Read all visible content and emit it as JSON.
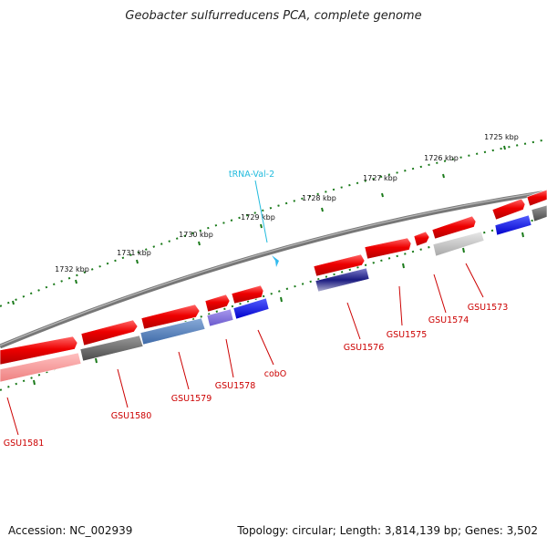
{
  "title": "Geobacter sulfurreducens PCA, complete genome",
  "footer": {
    "accession": "Accession: NC_002939",
    "summary": "Topology: circular; Length: 3,814,139 bp; Genes: 3,502"
  },
  "colors": {
    "backbone": "#777777",
    "tick": "#1a7a1a",
    "gene_label": "#cc0000",
    "trna_label": "#22bbdd"
  },
  "kbp_labels": [
    "1725 kbp",
    "1726 kbp",
    "1727 kbp",
    "1728 kbp",
    "1729 kbp",
    "1730 kbp",
    "1731 kbp",
    "1732 kbp"
  ],
  "trna_label": "tRNA-Val-2",
  "gene_labels": [
    "GSU1573",
    "GSU1574",
    "GSU1575",
    "GSU1576",
    "cobO",
    "GSU1578",
    "GSU1579",
    "GSU1580",
    "GSU1581"
  ]
}
